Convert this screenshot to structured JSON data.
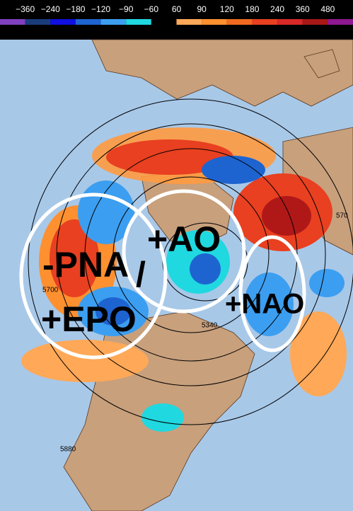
{
  "colorbar": {
    "labels": [
      "−360",
      "−240",
      "−180",
      "−120",
      "−90",
      "−60",
      "60",
      "90",
      "120",
      "180",
      "240",
      "360",
      "480"
    ],
    "colors": [
      "#8040c0",
      "#1a3c7a",
      "#1010e0",
      "#1e64d0",
      "#3c9ef0",
      "#20d8e0",
      "#000000",
      "#ffa858",
      "#ff9030",
      "#f06a20",
      "#e84020",
      "#d82828",
      "#a81818",
      "#901890"
    ]
  },
  "annotations": [
    "-PNA",
    "/",
    "+AO",
    "+NAO",
    "+EPO"
  ],
  "contour_labels": [
    "5700",
    "5340",
    "5880",
    "570"
  ]
}
